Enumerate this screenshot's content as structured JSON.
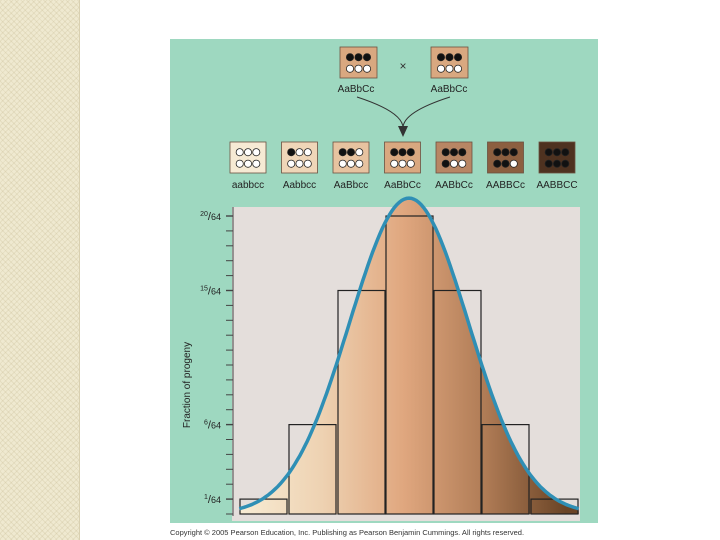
{
  "colors": {
    "panel": "#9ed8c0",
    "plot_background": "#e4dedb",
    "curve": "#2f8fb5",
    "filled_dot": "#111111",
    "empty_dot": "#ffffff"
  },
  "cross": {
    "symbol": "×",
    "parent_left": {
      "label": "AaBbCc",
      "dominant_alleles": 3,
      "tone": "#d9a880"
    },
    "parent_right": {
      "label": "AaBbCc",
      "dominant_alleles": 3,
      "tone": "#d9a880"
    }
  },
  "genotype_classes": [
    {
      "label": "aabbcc",
      "dominant_alleles": 0,
      "tone": "#f6ead4"
    },
    {
      "label": "Aabbcc",
      "dominant_alleles": 1,
      "tone": "#efd6b8"
    },
    {
      "label": "AaBbcc",
      "dominant_alleles": 2,
      "tone": "#e7c3a0"
    },
    {
      "label": "AaBbCc",
      "dominant_alleles": 3,
      "tone": "#d9a880"
    },
    {
      "label": "AABbCc",
      "dominant_alleles": 4,
      "tone": "#b88664"
    },
    {
      "label": "AABBCc",
      "dominant_alleles": 5,
      "tone": "#8c5f40"
    },
    {
      "label": "AABBCC",
      "dominant_alleles": 6,
      "tone": "#4e3220"
    }
  ],
  "y_axis_label": "Fraction of progeny",
  "y_ticks": [
    {
      "num": "20",
      "den": "64",
      "value": 20
    },
    {
      "num": "15",
      "den": "64",
      "value": 15
    },
    {
      "num": "6",
      "den": "64",
      "value": 6
    },
    {
      "num": "1",
      "den": "64",
      "value": 1
    }
  ],
  "chart_data": {
    "type": "bar",
    "categories": [
      "aabbcc",
      "Aabbcc",
      "AaBbcc",
      "AaBbCc",
      "AABbCc",
      "AABBCc",
      "AABBCC"
    ],
    "values": [
      1,
      6,
      15,
      20,
      15,
      6,
      1
    ],
    "denominator": 64,
    "ylim": [
      0,
      21
    ],
    "ylabel": "Fraction of progeny",
    "overlay": "normal distribution curve"
  },
  "copyright": "Copyright © 2005 Pearson Education, Inc. Publishing as Pearson Benjamin Cummings. All rights reserved."
}
